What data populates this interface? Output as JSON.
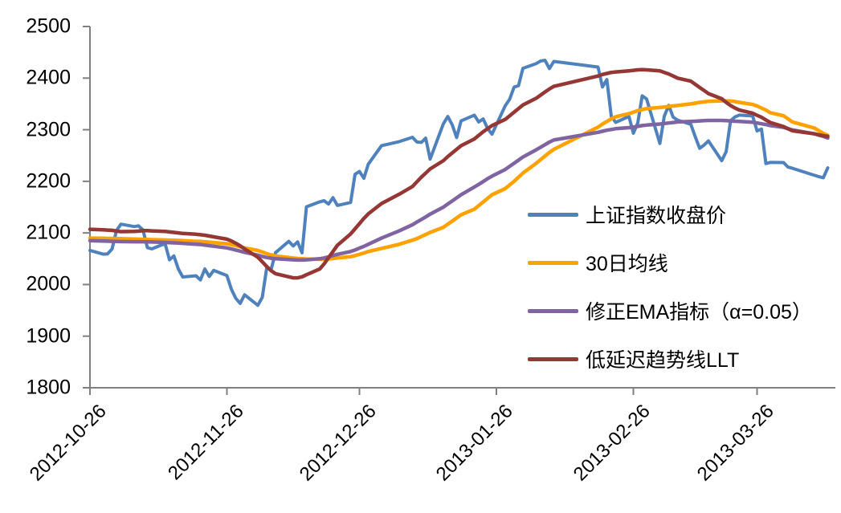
{
  "chart_data": {
    "type": "line",
    "title": "",
    "xlabel": "",
    "ylabel": "",
    "background": "#FFFFFF",
    "axis_color": "#808080",
    "tick_label_color": "#000000",
    "grid": false,
    "legend_position": "center-right-inside",
    "ylim": [
      1800,
      2500
    ],
    "y_ticks": [
      1800,
      1900,
      2000,
      2100,
      2200,
      2300,
      2400,
      2500
    ],
    "x_unit": "calendar days since 2012-10-26",
    "x_tick_days": [
      0,
      31,
      61,
      92,
      123,
      151
    ],
    "x_tick_labels": [
      "2012-10-26",
      "2012-11-26",
      "2012-12-26",
      "2013-01-26",
      "2013-02-26",
      "2013-03-26"
    ],
    "x_days": [
      0,
      3,
      4,
      5,
      6,
      7,
      10,
      11,
      12,
      13,
      14,
      17,
      18,
      19,
      20,
      21,
      24,
      25,
      26,
      27,
      28,
      31,
      32,
      33,
      34,
      35,
      38,
      39,
      40,
      41,
      42,
      45,
      46,
      47,
      48,
      49,
      52,
      53,
      54,
      55,
      56,
      59,
      60,
      61,
      62,
      63,
      66,
      70,
      73,
      74,
      75,
      76,
      77,
      80,
      81,
      82,
      83,
      84,
      87,
      88,
      89,
      90,
      91,
      94,
      95,
      96,
      97,
      98,
      101,
      102,
      103,
      104,
      105,
      115,
      116,
      117,
      118,
      119,
      122,
      123,
      124,
      125,
      126,
      129,
      130,
      131,
      132,
      133,
      136,
      137,
      138,
      139,
      140,
      143,
      144,
      145,
      146,
      147,
      150,
      151,
      152,
      153,
      154,
      157,
      158,
      159,
      164,
      165,
      166,
      167
    ],
    "series": [
      {
        "name": "上证指数收盘价",
        "color": "#4F81BD",
        "stroke_width": 4,
        "values": [
          2066.2,
          2058.9,
          2059.5,
          2068.9,
          2104.4,
          2117.1,
          2112.4,
          2113.8,
          2105.7,
          2071.5,
          2069.1,
          2079.3,
          2047.9,
          2055.4,
          2030.3,
          2014.7,
          2017.0,
          2008.9,
          2030.3,
          2015.6,
          2027.4,
          2017.5,
          1991.2,
          1973.5,
          1963.5,
          1980.1,
          1959.8,
          1975.1,
          2031.9,
          2029.2,
          2061.8,
          2083.8,
          2074.7,
          2082.7,
          2061.5,
          2150.6,
          2160.3,
          2162.5,
          2155.9,
          2168.4,
          2153.3,
          2159.1,
          2213.6,
          2219.1,
          2205.9,
          2233.3,
          2269.1,
          2277.0,
          2285.4,
          2276.1,
          2275.3,
          2283.7,
          2243.0,
          2311.7,
          2325.7,
          2309.5,
          2284.9,
          2317.1,
          2328.2,
          2315.1,
          2320.9,
          2302.6,
          2291.3,
          2346.5,
          2359.0,
          2382.5,
          2385.4,
          2419.0,
          2428.2,
          2433.1,
          2434.5,
          2418.5,
          2432.4,
          2421.5,
          2382.9,
          2397.2,
          2326.0,
          2314.2,
          2325.8,
          2293.3,
          2313.2,
          2365.6,
          2359.5,
          2273.4,
          2326.3,
          2347.2,
          2324.3,
          2318.6,
          2310.6,
          2286.6,
          2264.0,
          2270.3,
          2278.4,
          2240.0,
          2257.4,
          2317.4,
          2324.9,
          2328.3,
          2326.7,
          2297.7,
          2301.3,
          2234.4,
          2236.6,
          2236.3,
          2227.7,
          2225.3,
          2211.6,
          2209.0,
          2207.0,
          2226.0
        ]
      },
      {
        "name": "30日均线",
        "color": "#FFA200",
        "stroke_width": 4.5,
        "values": [
          2090,
          2089.6,
          2089.4,
          2089.3,
          2089.1,
          2089,
          2088.1,
          2087.9,
          2087.6,
          2087.3,
          2087,
          2086.3,
          2086,
          2085.8,
          2085.5,
          2085.1,
          2083.8,
          2083.4,
          2083,
          2082.2,
          2081.4,
          2079,
          2077.3,
          2075.5,
          2073.3,
          2071,
          2066,
          2063,
          2060,
          2057.5,
          2055.5,
          2052.5,
          2051.5,
          2050.5,
          2050,
          2049.5,
          2049,
          2049,
          2049.5,
          2050.5,
          2051.5,
          2054,
          2056,
          2058.5,
          2061,
          2064,
          2070,
          2078,
          2086,
          2089,
          2093,
          2097,
          2101,
          2111,
          2117,
          2123,
          2129,
          2135,
          2146,
          2153,
          2160,
          2167,
          2174,
          2186,
          2193,
          2200,
          2208,
          2216,
          2235,
          2242,
          2249,
          2256,
          2262,
          2305,
          2311,
          2316,
          2321,
          2325,
          2331,
          2334,
          2337,
          2339,
          2341,
          2343,
          2344,
          2345,
          2346,
          2347,
          2350,
          2351.5,
          2353,
          2354,
          2355,
          2356,
          2356,
          2355.5,
          2354.5,
          2353,
          2349,
          2346,
          2342,
          2338,
          2333,
          2327,
          2321,
          2315,
          2303,
          2298,
          2293,
          2289
        ]
      },
      {
        "name": "修正EMA指标（α=0.05）",
        "color": "#8064A2",
        "stroke_width": 4.5,
        "values": [
          2085,
          2084.2,
          2084,
          2083.8,
          2083.5,
          2083.3,
          2083,
          2083,
          2083,
          2082.8,
          2082.5,
          2081.5,
          2081.2,
          2080.8,
          2080.3,
          2079.8,
          2078.2,
          2077.7,
          2076.5,
          2075.4,
          2074.3,
          2071,
          2069,
          2067,
          2064.8,
          2062.5,
          2057,
          2054.5,
          2052.5,
          2051,
          2050,
          2048.5,
          2048,
          2047.5,
          2047.5,
          2048,
          2050,
          2051.5,
          2053.5,
          2056,
          2058.5,
          2064,
          2067,
          2070.5,
          2074,
          2078,
          2090,
          2104,
          2116,
          2121,
          2126,
          2131,
          2136.5,
          2150,
          2156,
          2162,
          2168,
          2174,
          2189,
          2194,
          2199.5,
          2205,
          2210,
          2223,
          2229,
          2235,
          2241,
          2247,
          2261,
          2266,
          2271,
          2276,
          2280,
          2295,
          2297,
          2299,
          2300.5,
          2302,
          2304,
          2305,
          2306.5,
          2308,
          2309,
          2311,
          2312,
          2313,
          2314,
          2315,
          2316,
          2316.5,
          2317,
          2317.5,
          2318,
          2318,
          2317.5,
          2317,
          2316.5,
          2316,
          2314.5,
          2313,
          2311.5,
          2310,
          2308,
          2304.5,
          2302,
          2299.5,
          2292,
          2289.5,
          2287,
          2284
        ]
      },
      {
        "name": "低延迟趋势线LLT",
        "color": "#953735",
        "stroke_width": 4.5,
        "values": [
          2107,
          2106,
          2105.5,
          2105,
          2103.5,
          2102.5,
          2103,
          2103.5,
          2104.5,
          2104.5,
          2104,
          2103,
          2102,
          2101,
          2100,
          2099,
          2097.5,
          2096.5,
          2095.5,
          2094,
          2092.5,
          2088,
          2084.5,
          2080,
          2075,
          2069,
          2053,
          2044,
          2035,
          2027,
          2021,
          2015,
          2013,
          2013,
          2015,
          2019,
          2030,
          2040,
          2052,
          2064,
          2076,
          2098,
          2108,
          2118,
          2128,
          2137,
          2157,
          2175,
          2190,
          2199,
          2208,
          2216,
          2224,
          2240,
          2248,
          2255,
          2262,
          2269,
          2282,
          2289,
          2296,
          2302,
          2308,
          2320,
          2327,
          2334,
          2341,
          2348,
          2361,
          2367,
          2373,
          2379,
          2384,
          2404,
          2407,
          2409,
          2411,
          2412,
          2414,
          2415,
          2416,
          2416.5,
          2416,
          2414,
          2411,
          2408,
          2404,
          2400,
          2394,
          2388,
          2382,
          2376,
          2370,
          2360,
          2353,
          2347,
          2342,
          2338,
          2332,
          2328,
          2324,
          2319,
          2314,
          2306,
          2302,
          2298,
          2292,
          2290,
          2288.5,
          2287
        ]
      }
    ]
  }
}
